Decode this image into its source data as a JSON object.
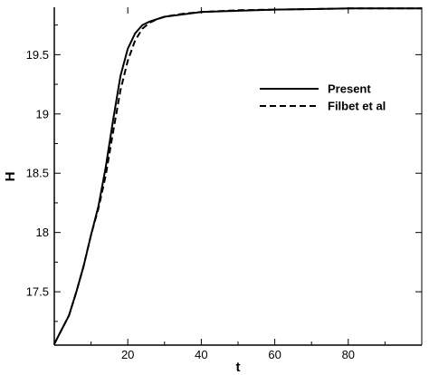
{
  "chart_data": {
    "type": "line",
    "xlabel": "t",
    "ylabel": "H",
    "xlim": [
      0,
      100
    ],
    "ylim": [
      17.05,
      19.9
    ],
    "x_ticks": [
      20,
      40,
      60,
      80
    ],
    "y_ticks": [
      17.5,
      18,
      18.5,
      19,
      19.5
    ],
    "x_tick_labels": [
      "20",
      "40",
      "60",
      "80"
    ],
    "y_tick_labels": [
      "17.5",
      "18",
      "18.5",
      "19",
      "19.5"
    ],
    "grid": false,
    "legend_position": "right",
    "series": [
      {
        "name": "Present",
        "line_style": "solid",
        "color": "#000000",
        "x": [
          0,
          2,
          4,
          6,
          8,
          10,
          12,
          14,
          16,
          18,
          20,
          22,
          24,
          26,
          28,
          30,
          35,
          40,
          50,
          60,
          70,
          80,
          90,
          100
        ],
        "y": [
          17.06,
          17.18,
          17.3,
          17.5,
          17.72,
          17.98,
          18.22,
          18.55,
          18.95,
          19.32,
          19.55,
          19.68,
          19.75,
          19.78,
          19.8,
          19.82,
          19.84,
          19.86,
          19.87,
          19.88,
          19.885,
          19.89,
          19.89,
          19.89
        ]
      },
      {
        "name": "Filbet et al",
        "line_style": "dashed",
        "color": "#000000",
        "x": [
          0,
          2,
          4,
          6,
          8,
          10,
          12,
          14,
          16,
          18,
          20,
          22,
          24,
          26,
          28,
          30,
          35,
          40,
          50,
          60,
          70,
          80,
          90,
          100
        ],
        "y": [
          17.06,
          17.18,
          17.3,
          17.5,
          17.72,
          17.98,
          18.2,
          18.48,
          18.85,
          19.2,
          19.45,
          19.62,
          19.72,
          19.77,
          19.8,
          19.82,
          19.845,
          19.86,
          19.875,
          19.88,
          19.885,
          19.89,
          19.89,
          19.89
        ]
      }
    ]
  }
}
